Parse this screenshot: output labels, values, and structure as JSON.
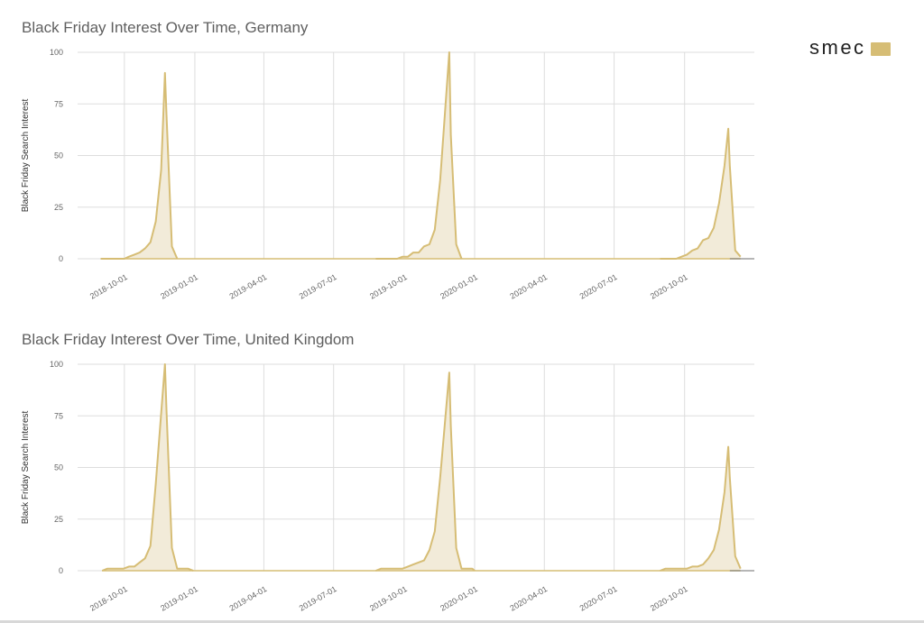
{
  "brand": {
    "name": "smec",
    "color": "#d6bd75"
  },
  "chart_data": [
    {
      "id": "de",
      "type": "area",
      "title": "Black Friday Interest Over Time, Germany",
      "ylabel": "Black Friday Search Interest",
      "xlabel": "",
      "ylim": [
        0,
        100
      ],
      "y_ticks": [
        0,
        25,
        50,
        75,
        100
      ],
      "x_range": [
        "2018-08-01",
        "2020-12-31"
      ],
      "x_ticks": [
        "2018-10-01",
        "2019-01-01",
        "2019-04-01",
        "2019-07-01",
        "2019-10-01",
        "2020-01-01",
        "2020-04-01",
        "2020-07-01",
        "2020-10-01"
      ],
      "grid": true,
      "fill_color": "#f2ebd9",
      "line_color": "#d6bd75",
      "series": [
        {
          "values": [
            [
              "2018-08-31",
              0
            ],
            [
              "2018-09-28",
              0
            ],
            [
              "2018-10-01",
              0
            ],
            [
              "2018-10-07",
              1
            ],
            [
              "2018-10-14",
              2
            ],
            [
              "2018-10-21",
              3
            ],
            [
              "2018-10-28",
              5
            ],
            [
              "2018-11-04",
              8
            ],
            [
              "2018-11-11",
              18
            ],
            [
              "2018-11-18",
              43
            ],
            [
              "2018-11-23",
              90
            ],
            [
              "2018-11-25",
              70
            ],
            [
              "2018-12-02",
              6
            ],
            [
              "2018-12-09",
              0
            ],
            [
              "2019-08-25",
              0
            ],
            [
              "2019-09-01",
              0
            ],
            [
              "2019-09-08",
              0
            ],
            [
              "2019-09-15",
              0
            ],
            [
              "2019-09-22",
              0
            ],
            [
              "2019-09-29",
              1
            ],
            [
              "2019-10-06",
              1
            ],
            [
              "2019-10-13",
              3
            ],
            [
              "2019-10-20",
              3
            ],
            [
              "2019-10-27",
              6
            ],
            [
              "2019-11-03",
              7
            ],
            [
              "2019-11-10",
              14
            ],
            [
              "2019-11-17",
              38
            ],
            [
              "2019-11-29",
              100
            ],
            [
              "2019-12-01",
              60
            ],
            [
              "2019-12-08",
              7
            ],
            [
              "2019-12-15",
              0
            ],
            [
              "2020-08-30",
              0
            ],
            [
              "2020-09-06",
              0
            ],
            [
              "2020-09-13",
              0
            ],
            [
              "2020-09-20",
              0
            ],
            [
              "2020-09-27",
              1
            ],
            [
              "2020-10-04",
              2
            ],
            [
              "2020-10-11",
              4
            ],
            [
              "2020-10-18",
              5
            ],
            [
              "2020-10-25",
              9
            ],
            [
              "2020-11-01",
              10
            ],
            [
              "2020-11-08",
              15
            ],
            [
              "2020-11-15",
              27
            ],
            [
              "2020-11-22",
              45
            ],
            [
              "2020-11-27",
              63
            ],
            [
              "2020-11-29",
              45
            ],
            [
              "2020-12-06",
              4
            ],
            [
              "2020-12-13",
              1
            ]
          ]
        }
      ]
    },
    {
      "id": "uk",
      "type": "area",
      "title": "Black Friday Interest Over Time, United Kingdom",
      "ylabel": "Black Friday Search Interest",
      "xlabel": "",
      "ylim": [
        0,
        100
      ],
      "y_ticks": [
        0,
        25,
        50,
        75,
        100
      ],
      "x_range": [
        "2018-08-01",
        "2020-12-31"
      ],
      "x_ticks": [
        "2018-10-01",
        "2019-01-01",
        "2019-04-01",
        "2019-07-01",
        "2019-10-01",
        "2020-01-01",
        "2020-04-01",
        "2020-07-01",
        "2020-10-01"
      ],
      "grid": true,
      "fill_color": "#f2ebd9",
      "line_color": "#d6bd75",
      "series": [
        {
          "values": [
            [
              "2018-09-02",
              0
            ],
            [
              "2018-09-09",
              1
            ],
            [
              "2018-09-16",
              1
            ],
            [
              "2018-09-23",
              1
            ],
            [
              "2018-09-30",
              1
            ],
            [
              "2018-10-07",
              2
            ],
            [
              "2018-10-14",
              2
            ],
            [
              "2018-10-21",
              4
            ],
            [
              "2018-10-28",
              6
            ],
            [
              "2018-11-04",
              12
            ],
            [
              "2018-11-11",
              42
            ],
            [
              "2018-11-23",
              100
            ],
            [
              "2018-11-25",
              78
            ],
            [
              "2018-12-02",
              11
            ],
            [
              "2018-12-09",
              1
            ],
            [
              "2018-12-16",
              1
            ],
            [
              "2018-12-23",
              1
            ],
            [
              "2018-12-30",
              0
            ],
            [
              "2019-08-25",
              0
            ],
            [
              "2019-09-01",
              1
            ],
            [
              "2019-09-08",
              1
            ],
            [
              "2019-09-15",
              1
            ],
            [
              "2019-09-22",
              1
            ],
            [
              "2019-09-29",
              1
            ],
            [
              "2019-10-06",
              2
            ],
            [
              "2019-10-13",
              3
            ],
            [
              "2019-10-20",
              4
            ],
            [
              "2019-10-27",
              5
            ],
            [
              "2019-11-03",
              10
            ],
            [
              "2019-11-10",
              19
            ],
            [
              "2019-11-17",
              45
            ],
            [
              "2019-11-29",
              96
            ],
            [
              "2019-12-01",
              70
            ],
            [
              "2019-12-08",
              11
            ],
            [
              "2019-12-15",
              1
            ],
            [
              "2019-12-22",
              1
            ],
            [
              "2019-12-29",
              1
            ],
            [
              "2020-01-01",
              0
            ],
            [
              "2020-08-30",
              0
            ],
            [
              "2020-09-06",
              1
            ],
            [
              "2020-09-13",
              1
            ],
            [
              "2020-09-20",
              1
            ],
            [
              "2020-09-27",
              1
            ],
            [
              "2020-10-04",
              1
            ],
            [
              "2020-10-11",
              2
            ],
            [
              "2020-10-18",
              2
            ],
            [
              "2020-10-25",
              3
            ],
            [
              "2020-11-01",
              6
            ],
            [
              "2020-11-08",
              10
            ],
            [
              "2020-11-15",
              20
            ],
            [
              "2020-11-22",
              38
            ],
            [
              "2020-11-27",
              60
            ],
            [
              "2020-11-29",
              45
            ],
            [
              "2020-12-06",
              7
            ],
            [
              "2020-12-13",
              1
            ]
          ]
        }
      ]
    }
  ]
}
